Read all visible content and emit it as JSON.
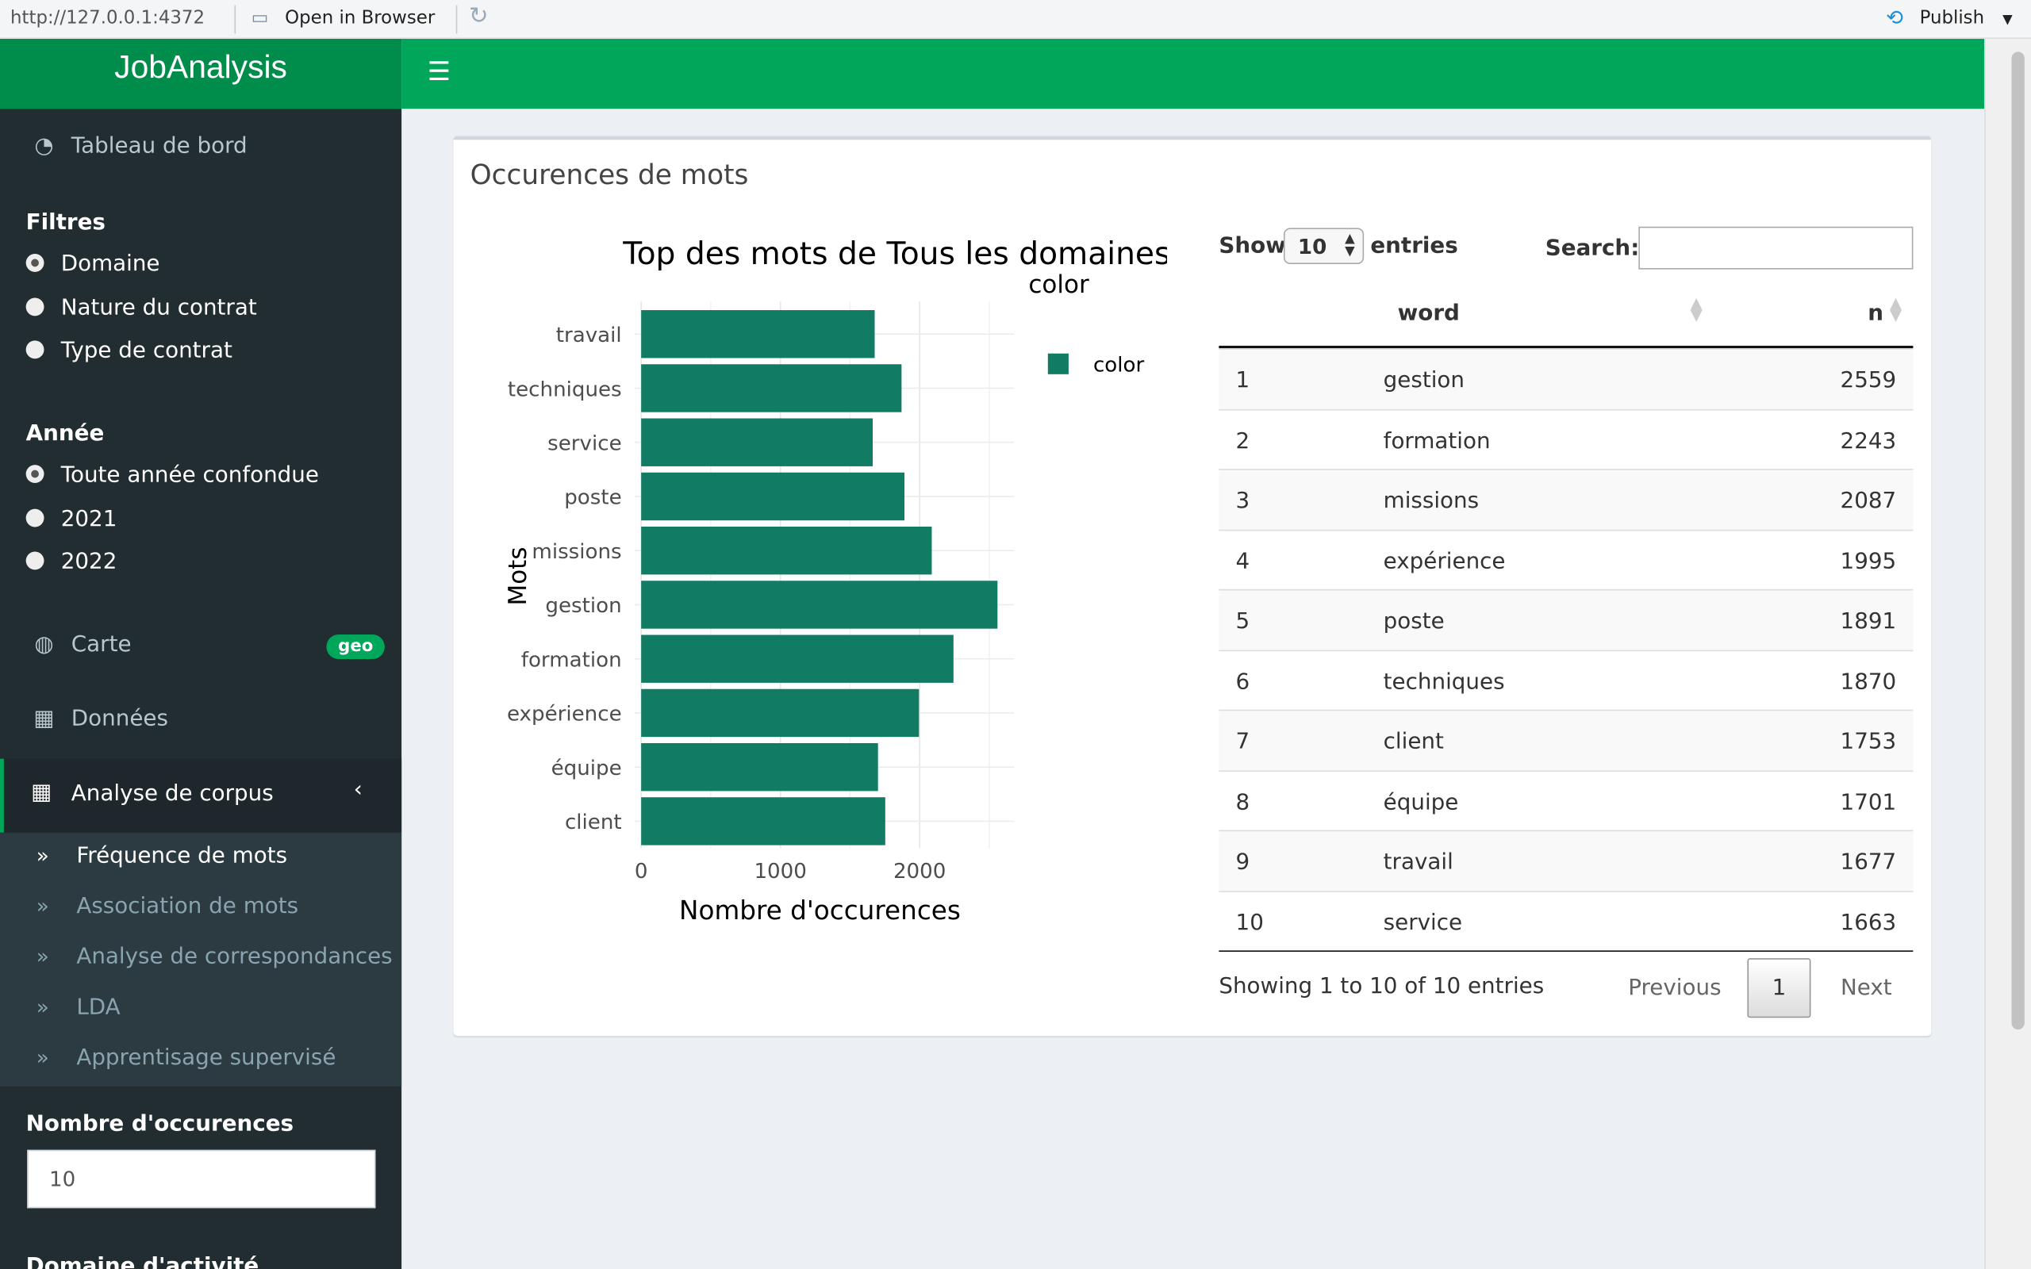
{
  "topbar": {
    "url": "http://127.0.0.1:4372",
    "open_browser": "Open in Browser",
    "publish": "Publish"
  },
  "app": {
    "title": "JobAnalysis"
  },
  "sidebar": {
    "dashboard": "Tableau de bord",
    "filters_title": "Filtres",
    "filters": [
      {
        "label": "Domaine",
        "checked": true
      },
      {
        "label": "Nature du contrat",
        "checked": false
      },
      {
        "label": "Type de contrat",
        "checked": false
      }
    ],
    "year_title": "Année",
    "years": [
      {
        "label": "Toute année confondue",
        "checked": true
      },
      {
        "label": "2021",
        "checked": false
      },
      {
        "label": "2022",
        "checked": false
      }
    ],
    "map": "Carte",
    "map_badge": "geo",
    "data": "Données",
    "corpus": "Analyse de corpus",
    "corpus_items": [
      "Fréquence de mots",
      "Association de mots",
      "Analyse de correspondances",
      "LDA",
      "Apprentisage supervisé"
    ],
    "occ_label": "Nombre d'occurences",
    "occ_value": "10",
    "next_label": "Domaine d'activité"
  },
  "box": {
    "title": "Occurences de mots"
  },
  "chart_data": {
    "type": "bar",
    "orientation": "horizontal",
    "title": "Top des mots de Tous les domaines",
    "xlabel": "Nombre d'occurences",
    "ylabel": "Mots",
    "legend_title": "color",
    "legend_entry": "color",
    "color": "#127b63",
    "categories": [
      "travail",
      "techniques",
      "service",
      "poste",
      "missions",
      "gestion",
      "formation",
      "expérience",
      "équipe",
      "client"
    ],
    "values": [
      1677,
      1870,
      1663,
      1891,
      2087,
      2559,
      2243,
      1995,
      1701,
      1753
    ],
    "xticks": [
      0,
      1000,
      2000
    ],
    "xlim": [
      -45,
      2690
    ]
  },
  "table": {
    "show": "Show",
    "length": "10",
    "entries": "entries",
    "search_label": "Search:",
    "search_value": "",
    "headers": [
      "",
      "word",
      "n"
    ],
    "rows": [
      [
        "1",
        "gestion",
        "2559"
      ],
      [
        "2",
        "formation",
        "2243"
      ],
      [
        "3",
        "missions",
        "2087"
      ],
      [
        "4",
        "expérience",
        "1995"
      ],
      [
        "5",
        "poste",
        "1891"
      ],
      [
        "6",
        "techniques",
        "1870"
      ],
      [
        "7",
        "client",
        "1753"
      ],
      [
        "8",
        "équipe",
        "1701"
      ],
      [
        "9",
        "travail",
        "1677"
      ],
      [
        "10",
        "service",
        "1663"
      ]
    ],
    "info": "Showing 1 to 10 of 10 entries",
    "previous": "Previous",
    "page": "1",
    "next": "Next"
  }
}
